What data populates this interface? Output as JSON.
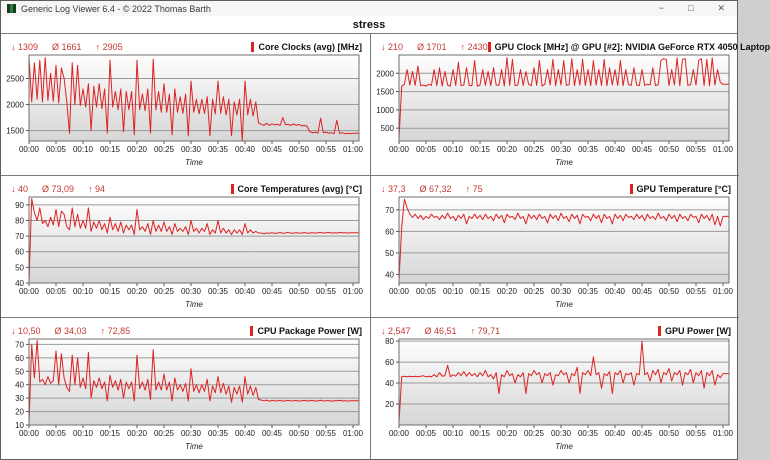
{
  "window": {
    "title": "Generic Log Viewer 6.4 - © 2022 Thomas Barth",
    "controls": {
      "minimize": "−",
      "maximize": "□",
      "close": "✕"
    }
  },
  "header": {
    "title": "stress"
  },
  "colors": {
    "series": "#dd2222",
    "stats_text": "#c63831",
    "plot_gradient_top": "#fefefe",
    "plot_gradient_bottom": "#d6d6d6",
    "grid_line": "#9a9a9a",
    "plot_border": "#6f6f6f"
  },
  "time_axis": {
    "ticks": [
      "00:00",
      "00:05",
      "00:10",
      "00:15",
      "00:20",
      "00:25",
      "00:30",
      "00:35",
      "00:40",
      "00:45",
      "00:50",
      "00:55",
      "01:00"
    ],
    "xlabel": "Time",
    "step_min": 0.5,
    "total_min": 60
  },
  "chart_data": [
    {
      "type": "line",
      "title": "Core Clocks (avg) [MHz]",
      "stats": {
        "min_label": "↓ 1309",
        "avg_label": "Ø 1661",
        "max_label": "↑ 2905"
      },
      "ylim": [
        1300,
        2950
      ],
      "yticks": [
        1500,
        2000,
        2500
      ],
      "values": [
        2905,
        2050,
        2800,
        2100,
        2850,
        2050,
        2900,
        2080,
        2600,
        2060,
        2750,
        2030,
        2700,
        2500,
        2050,
        1450,
        2800,
        2000,
        2750,
        1980,
        2300,
        1950,
        2400,
        1500,
        2350,
        1950,
        2400,
        1920,
        2300,
        1450,
        2850,
        1950,
        2250,
        1900,
        2300,
        1480,
        2250,
        1900,
        2250,
        1420,
        2850,
        1900,
        2200,
        1880,
        2300,
        1450,
        2870,
        1900,
        2250,
        1850,
        2400,
        1850,
        2200,
        1420,
        2300,
        1850,
        2150,
        1830,
        2200,
        1400,
        2450,
        1850,
        2100,
        1820,
        2100,
        1830,
        2150,
        1400,
        2100,
        1820,
        2450,
        1830,
        2150,
        1800,
        2100,
        1400,
        2050,
        1800,
        2100,
        1310,
        2450,
        1800,
        2100,
        1780,
        2050,
        1650,
        1620,
        1600,
        1640,
        1600,
        1630,
        1610,
        1620,
        1600,
        1750,
        1610,
        1620,
        1600,
        1630,
        1600,
        1620,
        1590,
        1600,
        1580,
        1480,
        1460,
        1470,
        1450,
        1740,
        1460,
        1470,
        1450,
        1460,
        1440,
        1700,
        1450,
        1460,
        1440,
        1450,
        1440,
        1450
      ]
    },
    {
      "type": "line",
      "title": "GPU Clock [MHz] @ GPU [#2]: NVIDIA GeForce RTX 4050 Laptop",
      "stats": {
        "min_label": "↓ 210",
        "avg_label": "Ø 1701",
        "max_label": "↑ 2430"
      },
      "ylim": [
        150,
        2500
      ],
      "yticks": [
        500,
        1000,
        1500,
        2000
      ],
      "values": [
        210,
        1650,
        1700,
        2100,
        1680,
        2050,
        1670,
        2200,
        1660,
        1680,
        1650,
        1700,
        1670,
        2100,
        1660,
        2150,
        1650,
        2050,
        1680,
        1650,
        2100,
        1670,
        2300,
        1660,
        1680,
        2150,
        1670,
        1660,
        2350,
        1650,
        1680,
        2100,
        1670,
        2050,
        1660,
        2150,
        1680,
        1670,
        2100,
        1650,
        2430,
        1670,
        2380,
        1660,
        1680,
        2100,
        1670,
        2050,
        1700,
        1660,
        2150,
        1670,
        2350,
        1650,
        1700,
        2100,
        1680,
        2380,
        1660,
        2100,
        1680,
        2350,
        1670,
        1690,
        2400,
        1660,
        2100,
        1680,
        2380,
        1670,
        2100,
        1660,
        2350,
        1680,
        2100,
        1670,
        2380,
        1660,
        2150,
        1680,
        2100,
        1670,
        2350,
        1660,
        2100,
        1690,
        1670,
        2150,
        1680,
        1660,
        2100,
        1670,
        1700,
        1680,
        2150,
        1660,
        1690,
        2350,
        2400,
        2380,
        1670,
        2100,
        1680,
        2420,
        1660,
        2380,
        2400,
        1670,
        1690,
        2100,
        1680,
        2350,
        2400,
        1670,
        2380,
        1660,
        2420,
        1680,
        2100,
        1750,
        1700
      ]
    },
    {
      "type": "line",
      "title": "Core Temperatures (avg) [°C]",
      "stats": {
        "min_label": "↓ 40",
        "avg_label": "Ø 73,09",
        "max_label": "↑ 94"
      },
      "ylim": [
        40,
        95
      ],
      "yticks": [
        40,
        50,
        60,
        70,
        80,
        90
      ],
      "values": [
        40,
        94,
        85,
        80,
        88,
        78,
        80,
        76,
        82,
        77,
        87,
        76,
        86,
        84,
        76,
        74,
        88,
        76,
        84,
        75,
        80,
        75,
        88,
        73,
        79,
        75,
        80,
        74,
        78,
        72,
        82,
        74,
        78,
        73,
        79,
        72,
        77,
        74,
        77,
        71,
        87,
        74,
        76,
        73,
        78,
        71,
        80,
        73,
        77,
        73,
        79,
        73,
        76,
        71,
        78,
        73,
        75,
        73,
        76,
        71,
        80,
        73,
        75,
        72,
        75,
        73,
        78,
        71,
        74,
        72,
        80,
        72,
        75,
        72,
        74,
        71,
        74,
        72,
        74,
        71,
        78,
        72,
        74,
        72,
        73,
        72,
        72,
        71.5,
        72,
        71.8,
        72.2,
        71.7,
        72,
        72.3,
        71.8,
        72,
        72.4,
        71.8,
        72,
        72.2,
        71.9,
        72,
        72.3,
        71.8,
        72,
        72.2,
        71.9,
        72.1,
        72.4,
        71.9,
        72.1,
        72.3,
        72,
        72.2,
        72,
        72.3,
        72.1,
        72.2,
        72,
        72.1,
        72.2
      ]
    },
    {
      "type": "line",
      "title": "GPU Temperature [°C]",
      "stats": {
        "min_label": "↓ 37,3",
        "avg_label": "Ø 67,32",
        "max_label": "↑ 75"
      },
      "ylim": [
        36,
        76
      ],
      "yticks": [
        40,
        50,
        60,
        70
      ],
      "values": [
        37.3,
        62,
        75,
        71,
        68,
        66.5,
        68,
        66,
        67.5,
        65.5,
        67,
        66,
        68,
        66.5,
        67,
        65.5,
        67.5,
        66,
        68.5,
        66,
        67,
        65,
        67.5,
        66,
        68,
        63.5,
        67,
        66,
        68,
        66,
        67.5,
        65.5,
        68,
        66,
        67,
        65,
        68,
        66,
        67.5,
        64,
        68,
        66.5,
        67,
        65.5,
        68.5,
        66,
        67,
        63.5,
        68,
        66,
        67.5,
        65.5,
        68,
        66,
        67,
        64,
        68,
        66,
        67.5,
        65,
        68.5,
        66,
        67,
        64.5,
        68,
        66,
        67.5,
        63.5,
        68,
        66.5,
        67,
        65,
        68,
        66,
        67.5,
        64,
        68,
        66,
        67,
        63.5,
        68,
        66,
        67.5,
        65,
        68,
        66.5,
        67,
        65.5,
        68,
        66,
        67.5,
        65,
        68,
        66,
        67,
        65.5,
        68.5,
        66,
        67,
        65,
        68,
        66,
        67.5,
        64.5,
        68,
        66,
        67,
        65,
        68,
        66.5,
        67,
        64,
        68,
        66,
        67.5,
        65,
        68,
        63,
        67,
        62.5,
        67
      ]
    },
    {
      "type": "line",
      "title": "CPU Package Power [W]",
      "stats": {
        "min_label": "↓ 10,50",
        "avg_label": "Ø 34,03",
        "max_label": "↑ 72,85"
      },
      "ylim": [
        10,
        74
      ],
      "yticks": [
        10,
        20,
        30,
        40,
        50,
        60,
        70
      ],
      "values": [
        10.5,
        70,
        45,
        72.85,
        42,
        44,
        40,
        46,
        41,
        43,
        65,
        40,
        63,
        45,
        38,
        35,
        62,
        40,
        60,
        38,
        45,
        37,
        64,
        30,
        43,
        38,
        45,
        37,
        42,
        28,
        47,
        38,
        43,
        36,
        44,
        30,
        42,
        37,
        42,
        28,
        62,
        37,
        42,
        36,
        44,
        29,
        66,
        36,
        42,
        36,
        48,
        36,
        42,
        28,
        45,
        36,
        40,
        35,
        41,
        28,
        52,
        35,
        40,
        34,
        40,
        35,
        44,
        28,
        39,
        34,
        46,
        34,
        41,
        33,
        39,
        27,
        38,
        33,
        39,
        27,
        46,
        33,
        39,
        32,
        38,
        29,
        28.5,
        28,
        28.5,
        27.8,
        28.2,
        27.9,
        28,
        28.4,
        27.8,
        28.1,
        28.3,
        27.9,
        28,
        28.2,
        27.8,
        28,
        28.3,
        27.9,
        28.1,
        28.2,
        27.8,
        28,
        28.4,
        27.9,
        28,
        28.2,
        27.8,
        28.1,
        28,
        28.3,
        27.9,
        28.1,
        27.8,
        28,
        28.1
      ]
    },
    {
      "type": "line",
      "title": "GPU Power [W]",
      "stats": {
        "min_label": "↓ 2,547",
        "avg_label": "Ø 46,51",
        "max_label": "↑ 79,71"
      },
      "ylim": [
        0,
        82
      ],
      "yticks": [
        20,
        40,
        60,
        80
      ],
      "values": [
        2.547,
        46,
        46.5,
        46,
        46.5,
        46,
        46.5,
        46,
        46.5,
        47,
        46,
        46.5,
        46,
        48,
        46,
        50,
        46.5,
        47,
        57,
        46,
        48,
        46.5,
        50,
        47,
        51,
        46.5,
        50,
        47,
        49,
        46,
        50,
        47,
        52,
        46,
        48,
        44,
        50,
        30,
        48,
        46,
        52,
        47,
        49,
        40,
        48,
        46,
        50,
        30,
        49,
        47,
        52,
        48,
        50,
        40,
        49,
        47,
        50,
        38,
        48,
        47,
        52,
        48,
        50,
        40,
        49,
        47,
        55,
        30,
        50,
        48,
        52,
        47,
        65,
        48,
        50,
        35,
        49,
        47,
        51,
        30,
        50,
        48,
        52,
        40,
        49,
        48,
        50,
        38,
        49,
        48,
        79.71,
        48,
        50,
        42,
        52,
        48,
        53,
        40,
        50,
        48,
        54,
        42,
        50,
        48,
        52,
        38,
        50,
        48,
        53,
        40,
        50,
        47,
        52,
        35,
        50,
        47,
        52,
        38,
        48,
        45,
        49
      ]
    }
  ]
}
